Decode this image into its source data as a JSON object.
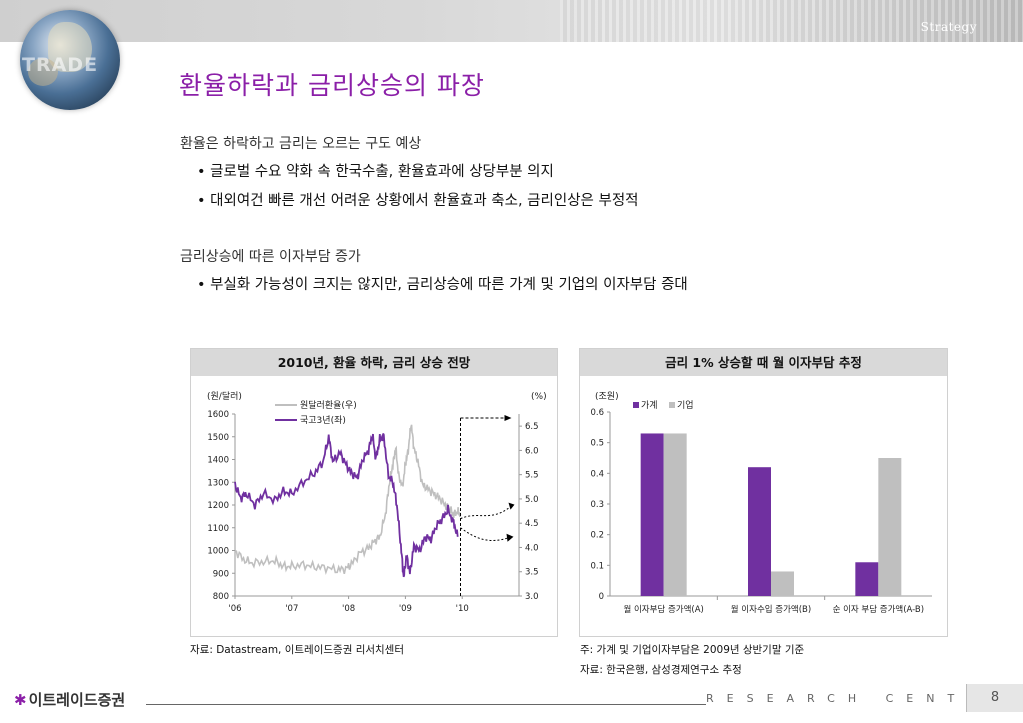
{
  "header": {
    "section_label": "Strategy",
    "logo_text": "TRADE",
    "title": "환율하락과 금리상승의 파장"
  },
  "content": {
    "section1": {
      "heading": "환율은 하락하고 금리는 오르는 구도 예상",
      "bullets": [
        "글로벌 수요 약화 속 한국수출, 환율효과에 상당부분 의지",
        "대외여건 빠른 개선 어려운 상황에서 환율효과 축소, 금리인상은 부정적"
      ]
    },
    "section2": {
      "heading": "금리상승에 따른 이자부담 증가",
      "bullets": [
        "부실화 가능성이 크지는 않지만, 금리상승에 따른 가계 및 기업의 이자부담 증대"
      ]
    }
  },
  "chart_data": [
    {
      "type": "line",
      "title": "2010년, 환율 하락, 금리 상승 전망",
      "left_axis_unit": "(원/달러)",
      "right_axis_unit": "(%)",
      "x_ticks": [
        "'06",
        "'07",
        "'08",
        "'09",
        "'10"
      ],
      "y_left_ticks": [
        "1600",
        "1500",
        "1400",
        "1300",
        "1200",
        "1100",
        "1000",
        "900",
        "800"
      ],
      "y_right_ticks": [
        "6.5",
        "6.0",
        "5.5",
        "5.0",
        "4.5",
        "4.0",
        "3.5",
        "3.0"
      ],
      "ylim_left": [
        800,
        1600
      ],
      "ylim_right": [
        3.0,
        6.5
      ],
      "legend_position": "top-center",
      "series": [
        {
          "name": "원달러환율(우)",
          "color": "#bfbfbf",
          "points": [
            [
              2006.0,
              1000
            ],
            [
              2006.15,
              960
            ],
            [
              2006.3,
              945
            ],
            [
              2006.5,
              950
            ],
            [
              2006.7,
              955
            ],
            [
              2006.85,
              930
            ],
            [
              2007.0,
              930
            ],
            [
              2007.2,
              938
            ],
            [
              2007.4,
              928
            ],
            [
              2007.6,
              925
            ],
            [
              2007.8,
              915
            ],
            [
              2007.95,
              920
            ],
            [
              2008.05,
              940
            ],
            [
              2008.2,
              990
            ],
            [
              2008.35,
              1010
            ],
            [
              2008.45,
              1040
            ],
            [
              2008.55,
              1060
            ],
            [
              2008.65,
              1160
            ],
            [
              2008.72,
              1300
            ],
            [
              2008.78,
              1380
            ],
            [
              2008.83,
              1450
            ],
            [
              2008.88,
              1330
            ],
            [
              2008.95,
              1280
            ],
            [
              2009.0,
              1380
            ],
            [
              2009.05,
              1440
            ],
            [
              2009.1,
              1560
            ],
            [
              2009.15,
              1450
            ],
            [
              2009.22,
              1390
            ],
            [
              2009.3,
              1290
            ],
            [
              2009.4,
              1270
            ],
            [
              2009.5,
              1250
            ],
            [
              2009.6,
              1230
            ],
            [
              2009.7,
              1200
            ],
            [
              2009.78,
              1180
            ],
            [
              2009.85,
              1160
            ],
            [
              2009.92,
              1170
            ],
            [
              2009.97,
              1160
            ]
          ]
        },
        {
          "name": "국고3년(좌)",
          "color": "#7030a0",
          "points": [
            [
              2006.0,
              1290
            ],
            [
              2006.1,
              1230
            ],
            [
              2006.2,
              1250
            ],
            [
              2006.35,
              1200
            ],
            [
              2006.5,
              1250
            ],
            [
              2006.7,
              1220
            ],
            [
              2006.85,
              1260
            ],
            [
              2007.0,
              1250
            ],
            [
              2007.2,
              1300
            ],
            [
              2007.4,
              1340
            ],
            [
              2007.55,
              1390
            ],
            [
              2007.65,
              1500
            ],
            [
              2007.72,
              1390
            ],
            [
              2007.85,
              1430
            ],
            [
              2007.95,
              1380
            ],
            [
              2008.05,
              1340
            ],
            [
              2008.15,
              1320
            ],
            [
              2008.25,
              1400
            ],
            [
              2008.35,
              1440
            ],
            [
              2008.42,
              1510
            ],
            [
              2008.48,
              1400
            ],
            [
              2008.55,
              1490
            ],
            [
              2008.62,
              1500
            ],
            [
              2008.7,
              1330
            ],
            [
              2008.78,
              1300
            ],
            [
              2008.85,
              1200
            ],
            [
              2008.92,
              1020
            ],
            [
              2008.97,
              880
            ],
            [
              2009.02,
              980
            ],
            [
              2009.08,
              900
            ],
            [
              2009.15,
              1020
            ],
            [
              2009.25,
              1000
            ],
            [
              2009.35,
              1060
            ],
            [
              2009.45,
              1050
            ],
            [
              2009.55,
              1110
            ],
            [
              2009.65,
              1140
            ],
            [
              2009.75,
              1180
            ],
            [
              2009.85,
              1120
            ],
            [
              2009.92,
              1060
            ]
          ]
        }
      ]
    },
    {
      "type": "bar",
      "title": "금리 1% 상승할 때 월 이자부담 추정",
      "y_unit": "(조원)",
      "ylim": [
        0,
        0.6
      ],
      "y_ticks": [
        "0.6",
        "0.5",
        "0.4",
        "0.3",
        "0.2",
        "0.1",
        "0"
      ],
      "categories": [
        "월 이자부담 증가액(A)",
        "월 이자수입 증가액(B)",
        "순 이자 부담 증가액(A-B)"
      ],
      "legend_position": "top-left",
      "series": [
        {
          "name": "가계",
          "color": "#7030a0",
          "values": [
            0.53,
            0.42,
            0.11
          ]
        },
        {
          "name": "기업",
          "color": "#bfbfbf",
          "values": [
            0.53,
            0.08,
            0.45
          ]
        }
      ]
    }
  ],
  "notes": {
    "left_source": "자료: Datastream, 이트레이드증권 리서치센터",
    "right_note": "주: 가계 및 기업이자부담은 2009년 상반기말 기준",
    "right_source": "자료: 한국은행, 삼성경제연구소 추정"
  },
  "footer": {
    "company": "이트레이드증권",
    "research_label": "RESEARCH CENTER",
    "page_number": "8"
  }
}
